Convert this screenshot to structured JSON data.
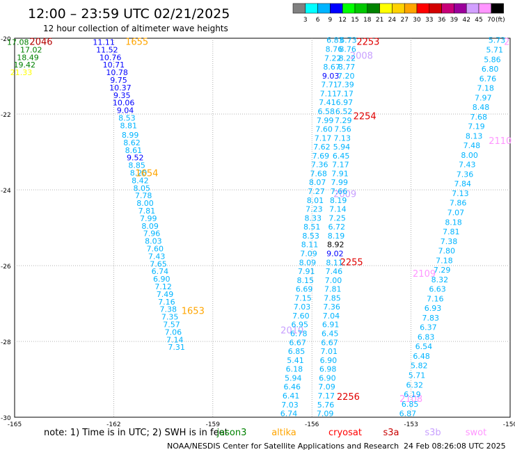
{
  "header": {
    "title": "12:00 – 23:59 UTC 02/21/2025",
    "subtitle": "12 hour collection of altimeter wave heights"
  },
  "colorbar": {
    "colors": [
      "#808080",
      "#00ffff",
      "#00b4ff",
      "#0000ff",
      "#00ff00",
      "#00c800",
      "#008200",
      "#ffff00",
      "#ffd200",
      "#ffa500",
      "#ff0000",
      "#d20000",
      "#c80078",
      "#9b009b",
      "#d2a0ff",
      "#ff96ff",
      "#000000"
    ],
    "labels": [
      "3",
      "6",
      "9",
      "12",
      "15",
      "18",
      "21",
      "24",
      "27",
      "30",
      "33",
      "36",
      "39",
      "42",
      "45",
      "70"
    ],
    "unit": "(ft)"
  },
  "footer": {
    "note": "note:  1) Time is in UTC;  2) SWH is in feet",
    "credit": "NOAA/NESDIS Center for Satellite Applications and Research",
    "timestamp": "24 Feb 08:26:08 UTC 2025"
  },
  "legend": [
    {
      "name": "jason3",
      "color": "#008200"
    },
    {
      "name": "altika",
      "color": "#ffa500"
    },
    {
      "name": "cryosat",
      "color": "#ff0000"
    },
    {
      "name": "s3a",
      "color": "#c80000"
    },
    {
      "name": "s3b",
      "color": "#c8a0ff"
    },
    {
      "name": "swot",
      "color": "#ff96ff"
    }
  ],
  "chart_data": {
    "type": "scatter",
    "title": "12:00 – 23:59 UTC 02/21/2025",
    "xlim": [
      -165,
      -150
    ],
    "ylim": [
      -30,
      -20
    ],
    "x_ticks": [
      "-165",
      "-162",
      "-159",
      "-156",
      "-153",
      "-150"
    ],
    "y_ticks": [
      "-20",
      "-22",
      "-24",
      "-26",
      "-28",
      "-30"
    ],
    "grid": true,
    "time_labels": [
      {
        "x": -164.2,
        "y": -20.08,
        "text": "2046",
        "color": "#b40000"
      },
      {
        "x": -161.3,
        "y": -20.08,
        "text": "1655",
        "color": "#ffa500"
      },
      {
        "x": -161.0,
        "y": -23.55,
        "text": "1654",
        "color": "#ffa500"
      },
      {
        "x": -159.6,
        "y": -27.18,
        "text": "1653",
        "color": "#ffa500"
      },
      {
        "x": -154.3,
        "y": -20.08,
        "text": "2253",
        "color": "#e00000"
      },
      {
        "x": -154.5,
        "y": -20.45,
        "text": "2008",
        "color": "#c8a0ff"
      },
      {
        "x": -154.4,
        "y": -22.05,
        "text": "2254",
        "color": "#e00000"
      },
      {
        "x": -150.3,
        "y": -22.7,
        "text": "2110",
        "color": "#ff96ff"
      },
      {
        "x": -155.0,
        "y": -24.1,
        "text": "2009",
        "color": "#c8a0ff"
      },
      {
        "x": -154.8,
        "y": -25.9,
        "text": "2255",
        "color": "#e00000"
      },
      {
        "x": -152.6,
        "y": -26.2,
        "text": "2109",
        "color": "#ff96ff"
      },
      {
        "x": -156.6,
        "y": -27.7,
        "text": "2010",
        "color": "#c8a0ff"
      },
      {
        "x": -154.9,
        "y": -29.45,
        "text": "2256",
        "color": "#e00000"
      },
      {
        "x": -153.0,
        "y": -29.5,
        "text": "2108",
        "color": "#ff96ff"
      },
      {
        "x": -150.1,
        "y": -20.08,
        "text": "2",
        "color": "#ff96ff"
      }
    ],
    "series": [
      {
        "name": "jason3",
        "color_note": "start cluster",
        "points": [
          {
            "x": -164.9,
            "y": -20.1,
            "v": "17.08",
            "c": "#008200"
          },
          {
            "x": -164.5,
            "y": -20.3,
            "v": "17.02",
            "c": "#008200"
          },
          {
            "x": -164.6,
            "y": -20.5,
            "v": "18.49",
            "c": "#008200"
          },
          {
            "x": -164.7,
            "y": -20.7,
            "v": "19.42",
            "c": "#008200"
          },
          {
            "x": -164.8,
            "y": -20.9,
            "v": "21.33",
            "c": "#ffff00"
          }
        ]
      },
      {
        "name": "altika",
        "points": [
          {
            "x": -162.3,
            "y": -20.1,
            "v": "11.11",
            "c": "#0000ff"
          },
          {
            "x": -162.2,
            "y": -20.3,
            "v": "11.52",
            "c": "#0000ff"
          },
          {
            "x": -162.1,
            "y": -20.5,
            "v": "10.76",
            "c": "#0000ff"
          },
          {
            "x": -162.0,
            "y": -20.7,
            "v": "10.71",
            "c": "#0000ff"
          },
          {
            "x": -161.9,
            "y": -20.9,
            "v": "10.78",
            "c": "#0000ff"
          },
          {
            "x": -161.85,
            "y": -21.1,
            "v": "9.75",
            "c": "#0000ff"
          },
          {
            "x": -161.8,
            "y": -21.3,
            "v": "10.37",
            "c": "#0000ff"
          },
          {
            "x": -161.75,
            "y": -21.5,
            "v": "9.35",
            "c": "#0000ff"
          },
          {
            "x": -161.7,
            "y": -21.7,
            "v": "10.06",
            "c": "#0000ff"
          },
          {
            "x": -161.65,
            "y": -21.9,
            "v": "9.04",
            "c": "#0000ff"
          },
          {
            "x": -161.6,
            "y": -22.1,
            "v": "8.53",
            "c": "#00b4ff"
          },
          {
            "x": -161.55,
            "y": -22.3,
            "v": "8.81",
            "c": "#00b4ff"
          },
          {
            "x": -161.5,
            "y": -22.55,
            "v": "8.99",
            "c": "#00b4ff"
          },
          {
            "x": -161.45,
            "y": -22.75,
            "v": "8.62",
            "c": "#00b4ff"
          },
          {
            "x": -161.4,
            "y": -22.95,
            "v": "8.61",
            "c": "#00b4ff"
          },
          {
            "x": -161.35,
            "y": -23.15,
            "v": "9.52",
            "c": "#0000ff"
          },
          {
            "x": -161.3,
            "y": -23.35,
            "v": "8.85",
            "c": "#00b4ff"
          },
          {
            "x": -161.25,
            "y": -23.55,
            "v": "8.20",
            "c": "#00b4ff"
          },
          {
            "x": -161.2,
            "y": -23.75,
            "v": "8.42",
            "c": "#00b4ff"
          },
          {
            "x": -161.15,
            "y": -23.95,
            "v": "8.05",
            "c": "#00b4ff"
          },
          {
            "x": -161.1,
            "y": -24.15,
            "v": "7.78",
            "c": "#00b4ff"
          },
          {
            "x": -161.05,
            "y": -24.35,
            "v": "8.00",
            "c": "#00b4ff"
          },
          {
            "x": -161.0,
            "y": -24.55,
            "v": "7.81",
            "c": "#00b4ff"
          },
          {
            "x": -160.95,
            "y": -24.75,
            "v": "7.99",
            "c": "#00b4ff"
          },
          {
            "x": -160.9,
            "y": -24.95,
            "v": "8.09",
            "c": "#00b4ff"
          },
          {
            "x": -160.85,
            "y": -25.15,
            "v": "7.96",
            "c": "#00b4ff"
          },
          {
            "x": -160.8,
            "y": -25.35,
            "v": "8.03",
            "c": "#00b4ff"
          },
          {
            "x": -160.75,
            "y": -25.55,
            "v": "7.60",
            "c": "#00b4ff"
          },
          {
            "x": -160.7,
            "y": -25.75,
            "v": "7.43",
            "c": "#00b4ff"
          },
          {
            "x": -160.65,
            "y": -25.95,
            "v": "7.65",
            "c": "#00b4ff"
          },
          {
            "x": -160.6,
            "y": -26.15,
            "v": "6.74",
            "c": "#00b4ff"
          },
          {
            "x": -160.55,
            "y": -26.35,
            "v": "6.90",
            "c": "#00b4ff"
          },
          {
            "x": -160.5,
            "y": -26.55,
            "v": "7.12",
            "c": "#00b4ff"
          },
          {
            "x": -160.45,
            "y": -26.75,
            "v": "7.49",
            "c": "#00b4ff"
          },
          {
            "x": -160.4,
            "y": -26.95,
            "v": "7.16",
            "c": "#00b4ff"
          },
          {
            "x": -160.35,
            "y": -27.15,
            "v": "7.38",
            "c": "#00b4ff"
          },
          {
            "x": -160.3,
            "y": -27.35,
            "v": "7.35",
            "c": "#00b4ff"
          },
          {
            "x": -160.25,
            "y": -27.55,
            "v": "7.57",
            "c": "#00b4ff"
          },
          {
            "x": -160.2,
            "y": -27.75,
            "v": "7.06",
            "c": "#00b4ff"
          },
          {
            "x": -160.15,
            "y": -27.95,
            "v": "7.14",
            "c": "#00b4ff"
          },
          {
            "x": -160.1,
            "y": -28.15,
            "v": "7.31",
            "c": "#00b4ff"
          }
        ]
      }
    ]
  }
}
